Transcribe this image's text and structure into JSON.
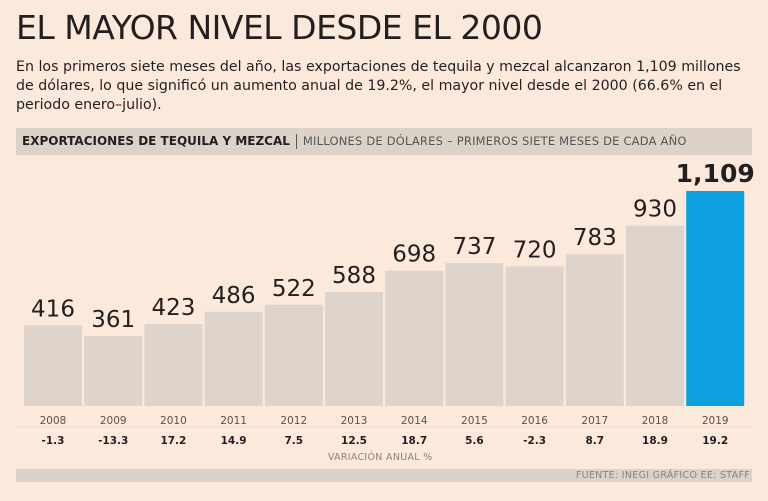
{
  "headline": "EL MAYOR NIVEL DESDE EL 2000",
  "subtitle": "En los primeros siete meses del año, las exportaciones de tequila y mezcal alcanzaron 1,109 millones de dólares, lo que significó un aumento anual de 19.2%, el mayor nivel desde el 2000 (66.6% en el periodo enero–julio).",
  "chart_header": {
    "title": "EXPORTACIONES DE TEQUILA Y MEZCAL",
    "subtitle": "MILLONES DE DÓLARES – PRIMEROS SIETE MESES DE CADA AÑO"
  },
  "chart_data": {
    "type": "bar",
    "title": "EXPORTACIONES DE TEQUILA Y MEZCAL",
    "ylabel": "MILLONES DE DÓLARES – PRIMEROS SIETE MESES DE CADA AÑO",
    "categories": [
      "2008",
      "2009",
      "2010",
      "2011",
      "2012",
      "2013",
      "2014",
      "2015",
      "2016",
      "2017",
      "2018",
      "2019"
    ],
    "values": [
      416,
      361,
      423,
      486,
      522,
      588,
      698,
      737,
      720,
      783,
      930,
      1109
    ],
    "value_labels": [
      "416",
      "361",
      "423",
      "486",
      "522",
      "588",
      "698",
      "737",
      "720",
      "783",
      "930",
      "1,109"
    ],
    "variacion_anual": [
      "-1.3",
      "-13.3",
      "17.2",
      "14.9",
      "7.5",
      "12.5",
      "18.7",
      "5.6",
      "-2.3",
      "8.7",
      "18.9",
      "19.2"
    ],
    "variacion_label": "VARIACIÓN ANUAL %",
    "ylim": [
      0,
      1109
    ],
    "colors": {
      "bar": "#dfd4cc",
      "highlight": "#0da0e0"
    },
    "highlight_category": "2019"
  },
  "source": "FUENTE: INEGI GRÁFICO EE: STAFF"
}
